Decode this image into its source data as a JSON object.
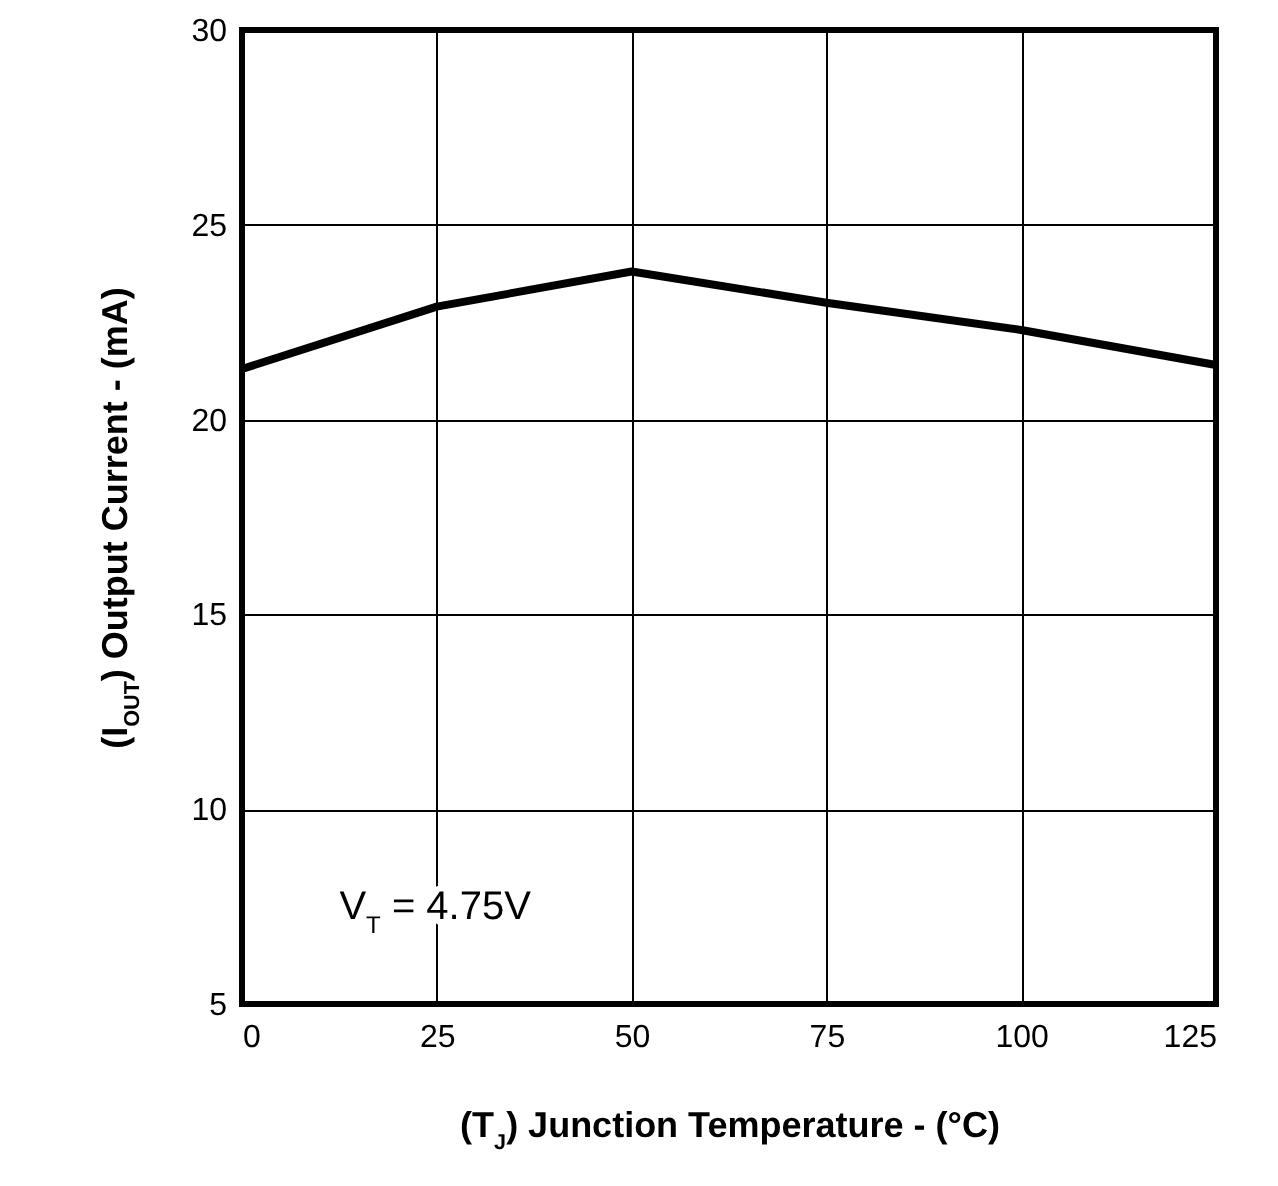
{
  "chart_data": {
    "type": "line",
    "xlabel": "(T$_{J}$)  Junction Temperature - (°C)",
    "ylabel": "(I$_{OUT}$)  Output Current - (mA)",
    "x": [
      0,
      25,
      50,
      75,
      100,
      125
    ],
    "series": [
      {
        "color": "#000000",
        "values": [
          21.3,
          22.9,
          23.8,
          23.0,
          22.3,
          21.4
        ]
      }
    ],
    "xlim": [
      0,
      125
    ],
    "xticks": [
      0,
      25,
      50,
      75,
      100,
      125
    ],
    "ylim": [
      5,
      30
    ],
    "yticks": [
      5,
      10,
      15,
      20,
      25,
      30
    ],
    "grid": true,
    "marker": "none",
    "line_style": "solid",
    "annotations": [
      "V$_{T}$ = 4.75V"
    ]
  }
}
